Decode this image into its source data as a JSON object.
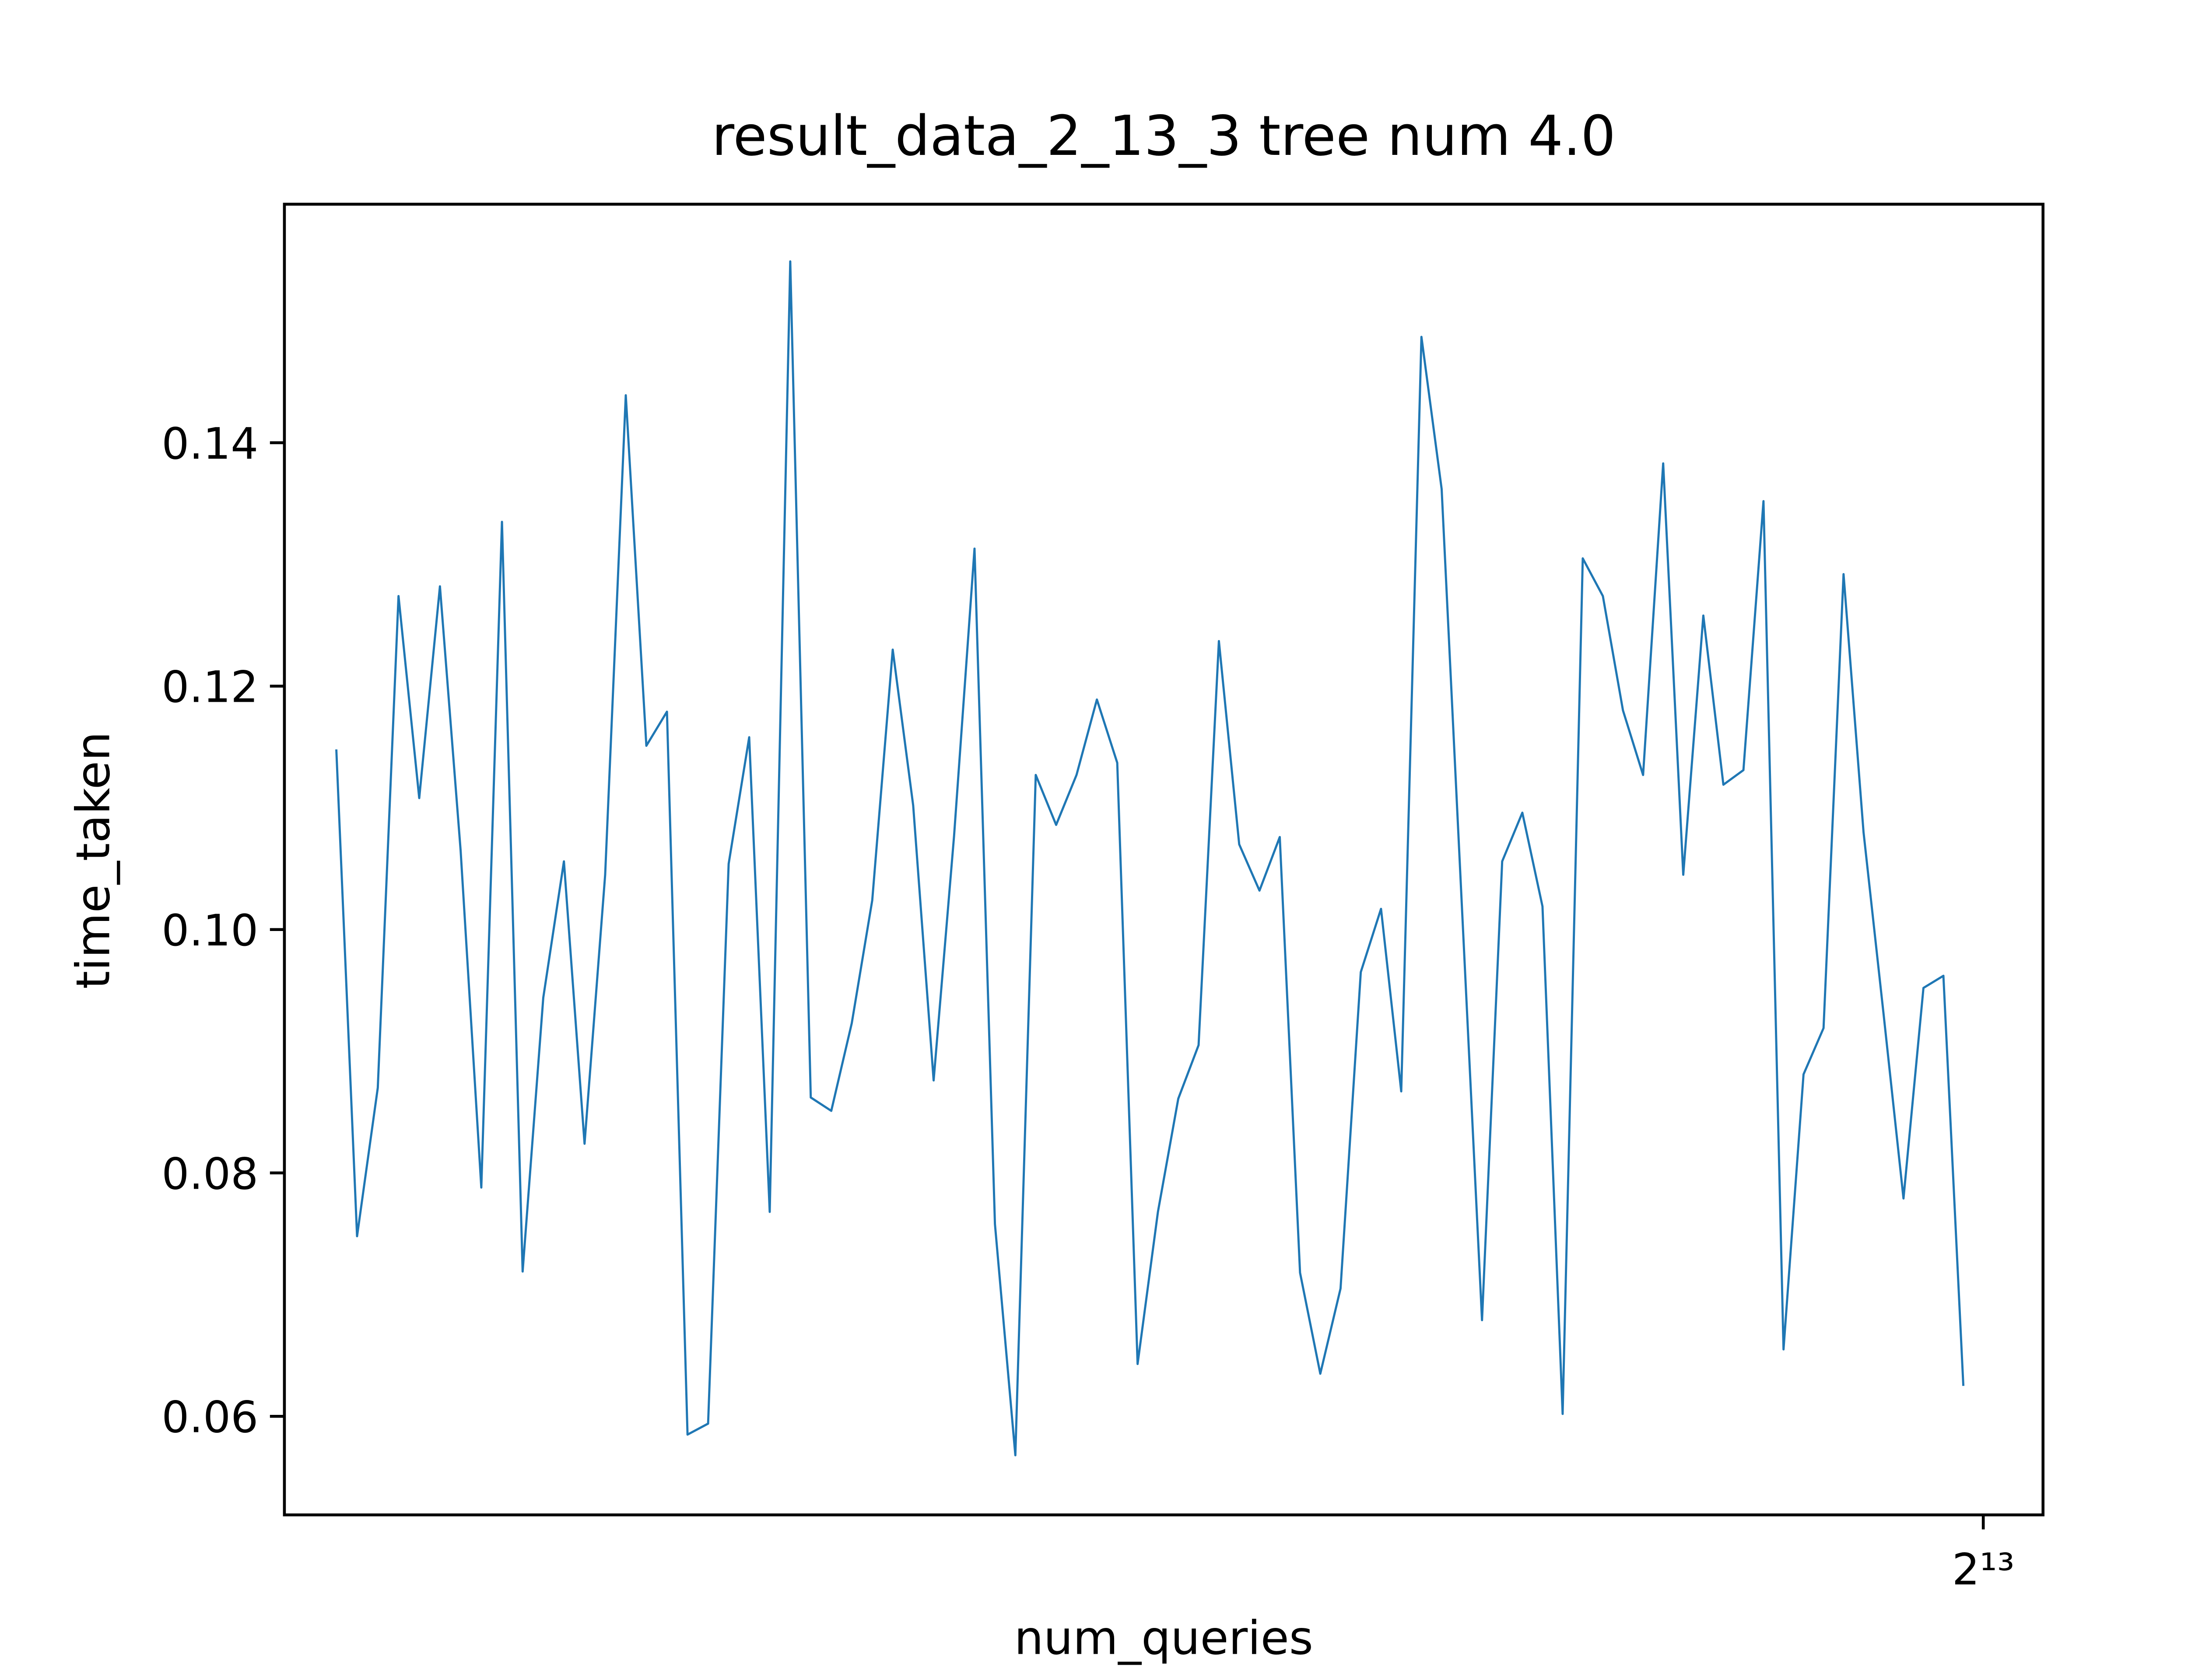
{
  "chart_data": {
    "type": "line",
    "title": "result_data_2_13_3 tree num 4.0",
    "x_label": "num_queries",
    "y_label": "time_taken",
    "xscale": "log",
    "xbase": 2,
    "xlim": [
      7858,
      8204
    ],
    "xticks": [
      {
        "value": 8192,
        "label": "2¹³"
      }
    ],
    "ylim": [
      0.0519,
      0.1596
    ],
    "yticks": [
      0.06,
      0.08,
      {
        "value": 0.1,
        "label": "0.10"
      },
      0.12,
      0.14
    ],
    "grid": false,
    "x": [
      7868,
      7872,
      7876,
      7880,
      7884,
      7888,
      7892,
      7896,
      7900,
      7904,
      7908,
      7912,
      7916,
      7920,
      7924,
      7928,
      7932,
      7936,
      7940,
      7944,
      7948,
      7952,
      7956,
      7960,
      7964,
      7968,
      7972,
      7976,
      7980,
      7984,
      7988,
      7992,
      7996,
      8000,
      8004,
      8008,
      8012,
      8016,
      8020,
      8024,
      8028,
      8032,
      8036,
      8040,
      8044,
      8048,
      8052,
      8056,
      8060,
      8064,
      8068,
      8072,
      8076,
      8080,
      8084,
      8088,
      8092,
      8096,
      8100,
      8104,
      8108,
      8112,
      8116,
      8120,
      8124,
      8128,
      8132,
      8136,
      8140,
      8144,
      8148,
      8152,
      8156,
      8160,
      8164,
      8168,
      8172,
      8176,
      8180,
      8184,
      8188
    ],
    "series": [
      {
        "color": "#1f77b4",
        "values": [
          0.1148,
          0.0748,
          0.087,
          0.1274,
          0.1108,
          0.1282,
          0.1065,
          0.0788,
          0.1335,
          0.0719,
          0.0944,
          0.1056,
          0.0824,
          0.1045,
          0.1439,
          0.1151,
          0.1179,
          0.0585,
          0.0594,
          0.1054,
          0.1158,
          0.0768,
          0.1549,
          0.0862,
          0.0851,
          0.0923,
          0.1024,
          0.123,
          0.1102,
          0.0876,
          0.1077,
          0.1313,
          0.0758,
          0.0568,
          0.1127,
          0.1086,
          0.1127,
          0.1189,
          0.1137,
          0.0643,
          0.0768,
          0.0861,
          0.0905,
          0.1237,
          0.107,
          0.1032,
          0.1076,
          0.0718,
          0.0635,
          0.0705,
          0.0965,
          0.1017,
          0.0867,
          0.1487,
          0.1362,
          0.102,
          0.0679,
          0.1056,
          0.1096,
          0.1019,
          0.0602,
          0.1305,
          0.1274,
          0.118,
          0.1127,
          0.1383,
          0.1045,
          0.1258,
          0.1119,
          0.1131,
          0.1352,
          0.0655,
          0.0881,
          0.0919,
          0.1292,
          0.108,
          0.0931,
          0.0779,
          0.0952,
          0.0962,
          0.0625
        ]
      }
    ]
  }
}
